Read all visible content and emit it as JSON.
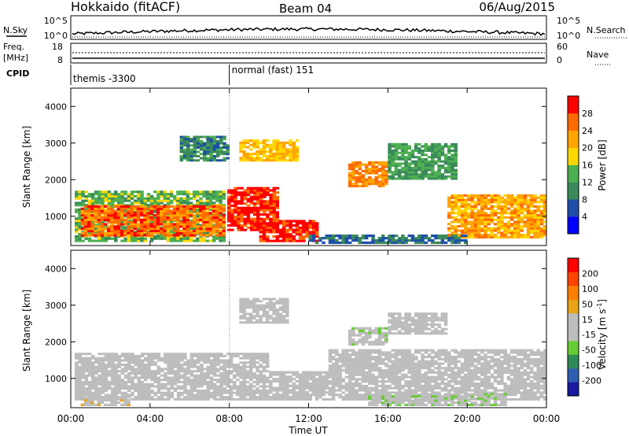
{
  "header": {
    "station": "Hokkaido (fitACF)",
    "beam": "Beam 04",
    "date": "06/Aug/2015"
  },
  "noise_panel": {
    "left_label": "N.Sky",
    "right_label": "N.Search",
    "left_ticks": [
      "10^5",
      "10^0"
    ],
    "right_ticks": [
      "10^5",
      "10^0"
    ]
  },
  "freq_panel": {
    "left_label_1": "Freq.",
    "left_label_2": "[MHz]",
    "right_label": "Nave",
    "left_ticks": [
      "18",
      "8"
    ],
    "right_ticks": [
      "60",
      "0"
    ]
  },
  "cpid_panel": {
    "label": "CPID",
    "segments": [
      {
        "text": "themis -3300",
        "start_hour": 0
      },
      {
        "text": "normal (fast) 151",
        "start_hour": 8
      }
    ]
  },
  "colors": {
    "power_scale": [
      "#0000ff",
      "#1f4fa8",
      "#3a8a5a",
      "#4caf50",
      "#ffd700",
      "#ffa500",
      "#ff6a00",
      "#ff0000"
    ],
    "velocity_scale": [
      "#1a1aa0",
      "#2f5fb0",
      "#2e8b57",
      "#66cc33",
      "#bdbdbd",
      "#bdbdbd",
      "#e8a317",
      "#ff8000",
      "#ff4500",
      "#ff0000"
    ],
    "ground_scatter": "#bdbdbd"
  },
  "chart_data": [
    {
      "type": "heatmap",
      "name": "power",
      "ylabel": "Slant Range [km]",
      "yticks": [
        "1000",
        "2000",
        "3000",
        "4000"
      ],
      "ylim": [
        200,
        4500
      ],
      "xlim": [
        0,
        24
      ],
      "colorbar_label": "Power [dB]",
      "colorbar_ticks": [
        "4",
        "8",
        "12",
        "16",
        "20",
        "24",
        "28"
      ],
      "colorbar_range": [
        0,
        32
      ],
      "regions": [
        {
          "t0": 0.2,
          "t1": 7.8,
          "r0": 300,
          "r1": 1700,
          "level": 14
        },
        {
          "t0": 0.5,
          "t1": 7.8,
          "r0": 450,
          "r1": 1300,
          "level": 26
        },
        {
          "t0": 7.9,
          "t1": 10.5,
          "r0": 600,
          "r1": 1800,
          "level": 30
        },
        {
          "t0": 9.5,
          "t1": 12.5,
          "r0": 300,
          "r1": 900,
          "level": 30
        },
        {
          "t0": 8.5,
          "t1": 11.5,
          "r0": 2500,
          "r1": 3100,
          "level": 20
        },
        {
          "t0": 14.0,
          "t1": 16.0,
          "r0": 1800,
          "r1": 2500,
          "level": 24
        },
        {
          "t0": 16.0,
          "t1": 19.5,
          "r0": 2000,
          "r1": 3000,
          "level": 12
        },
        {
          "t0": 19.0,
          "t1": 24.0,
          "r0": 400,
          "r1": 1600,
          "level": 22
        },
        {
          "t0": 12.0,
          "t1": 20.0,
          "r0": 250,
          "r1": 500,
          "level": 8
        },
        {
          "t0": 5.5,
          "t1": 8.0,
          "r0": 2500,
          "r1": 3200,
          "level": 10
        }
      ]
    },
    {
      "type": "heatmap",
      "name": "velocity",
      "ylabel": "Slant Range [km]",
      "yticks": [
        "1000",
        "2000",
        "3000",
        "4000"
      ],
      "ylim": [
        200,
        4500
      ],
      "xlim": [
        0,
        24
      ],
      "colorbar_label": "Velocity [m s",
      "colorbar_label_sup": "-1",
      "colorbar_ticks": [
        "200",
        "100",
        "50",
        "15",
        "-15",
        "-50",
        "-100",
        "-200"
      ],
      "colorbar_range": [
        -250,
        250
      ],
      "regions": [
        {
          "t0": 0.2,
          "t1": 10.0,
          "r0": 400,
          "r1": 1700,
          "level": 0
        },
        {
          "t0": 10.0,
          "t1": 13.0,
          "r0": 400,
          "r1": 1200,
          "level": 0
        },
        {
          "t0": 13.0,
          "t1": 24.0,
          "r0": 400,
          "r1": 1800,
          "level": 0
        },
        {
          "t0": 0.5,
          "t1": 3.0,
          "r0": 250,
          "r1": 500,
          "level": 40
        },
        {
          "t0": 8.5,
          "t1": 11.0,
          "r0": 2500,
          "r1": 3200,
          "level": -30
        },
        {
          "t0": 14.0,
          "t1": 16.0,
          "r0": 1900,
          "r1": 2400,
          "level": -40
        },
        {
          "t0": 15.0,
          "t1": 22.0,
          "r0": 250,
          "r1": 600,
          "level": -40
        },
        {
          "t0": 16.0,
          "t1": 19.0,
          "r0": 2200,
          "r1": 2800,
          "level": 10
        }
      ]
    }
  ],
  "x_axis": {
    "label": "Time UT",
    "ticks": [
      "00:00",
      "04:00",
      "08:00",
      "12:00",
      "16:00",
      "20:00",
      "00:00"
    ]
  }
}
